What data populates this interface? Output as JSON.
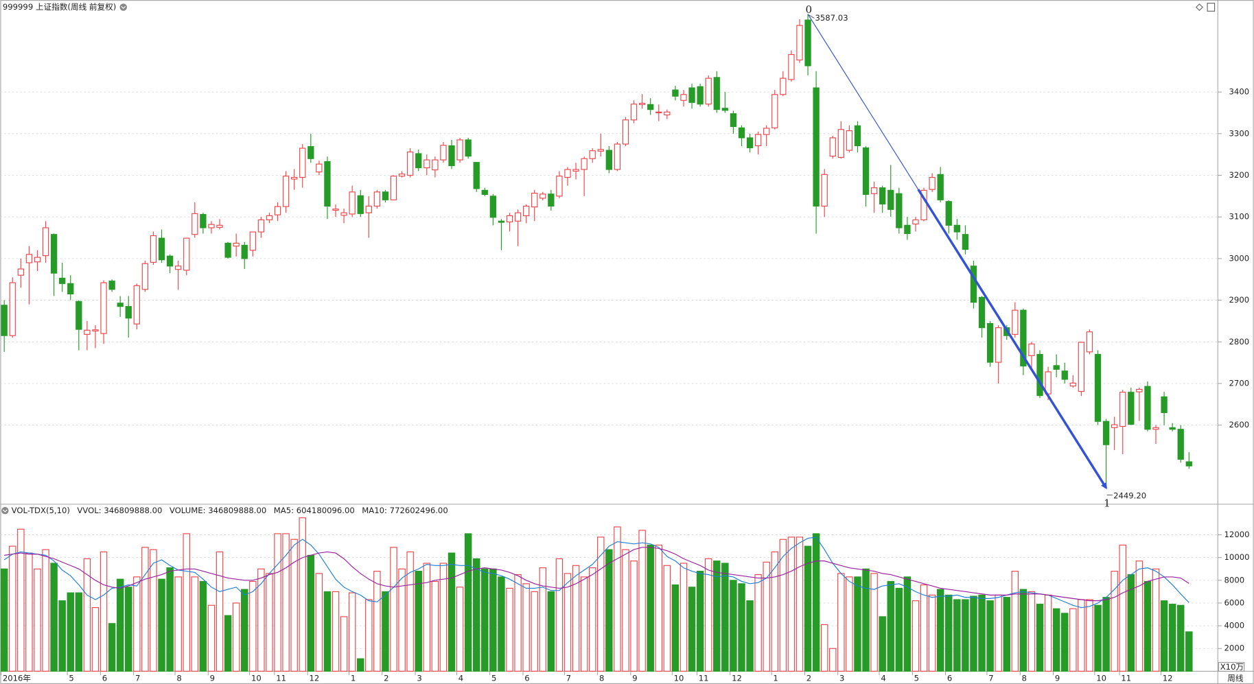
{
  "header": {
    "title": "999999 上证指数(周线 前复权)"
  },
  "chart_data": [
    {
      "type": "candlestick",
      "categories": [
        "2016年",
        null,
        null,
        null,
        null,
        null,
        null,
        null,
        "5",
        null,
        null,
        null,
        "6",
        null,
        null,
        null,
        "7",
        null,
        null,
        null,
        null,
        "8",
        null,
        null,
        null,
        "9",
        null,
        null,
        null,
        null,
        "10",
        null,
        null,
        "11",
        null,
        null,
        null,
        "12",
        null,
        null,
        null,
        null,
        "1",
        null,
        null,
        null,
        "2",
        null,
        null,
        null,
        "3",
        null,
        null,
        null,
        null,
        "4",
        null,
        null,
        null,
        "5",
        null,
        null,
        null,
        "6",
        null,
        null,
        null,
        null,
        "7",
        null,
        null,
        null,
        "8",
        null,
        null,
        null,
        "9",
        null,
        null,
        null,
        null,
        "10",
        null,
        null,
        "11",
        null,
        null,
        null,
        "12",
        null,
        null,
        null,
        null,
        "1",
        null,
        null,
        null,
        "2",
        null,
        null,
        null,
        "3",
        null,
        null,
        null,
        null,
        "4",
        null,
        null,
        null,
        "5",
        null,
        null,
        null,
        "6",
        null,
        null,
        null,
        null,
        "7",
        null,
        null,
        null,
        "8",
        null,
        null,
        null,
        "9",
        null,
        null,
        null,
        null,
        "10",
        null,
        null,
        "11",
        null,
        null,
        null,
        null,
        "12",
        null,
        null,
        null
      ],
      "open": [
        2888,
        2815,
        2960,
        2990,
        2992,
        3007,
        3058,
        2953,
        2940,
        2897,
        2818,
        2826,
        2820,
        2946,
        2893,
        2885,
        2843,
        2926,
        2991,
        3049,
        3006,
        2974,
        2972,
        3058,
        3106,
        3074,
        3075,
        3037,
        3030,
        3032,
        3020,
        3064,
        3093,
        3105,
        3125,
        3191,
        3195,
        3269,
        3208,
        3233,
        3116,
        3104,
        3107,
        3151,
        3110,
        3126,
        3160,
        3141,
        3198,
        3200,
        3252,
        3218,
        3213,
        3237,
        3271,
        3237,
        3285,
        3231,
        3164,
        3150,
        3090,
        3088,
        3090,
        3103,
        3124,
        3145,
        3155,
        3150,
        3195,
        3210,
        3214,
        3240,
        3258,
        3260,
        3214,
        3275,
        3333,
        3370,
        3370,
        3350,
        3345,
        3405,
        3380,
        3410,
        3413,
        3371,
        3435,
        3361,
        3348,
        3314,
        3290,
        3271,
        3298,
        3314,
        3394,
        3430,
        3477,
        3573,
        3410,
        3126,
        3246,
        3243,
        3260,
        3319,
        3266,
        3156,
        3170,
        3164,
        3156,
        3080,
        3083,
        3093,
        3166,
        3202,
        3137,
        3080,
        3058,
        2982,
        2907,
        2844,
        2751,
        2834,
        2818,
        2876,
        2767,
        2770,
        2675,
        2743,
        2730,
        2694,
        2681,
        2776,
        2770,
        2609,
        2594,
        2597,
        2679,
        2680,
        2693,
        2590,
        2668,
        2594,
        2590,
        2512
      ],
      "high": [
        2900,
        2955,
        3000,
        3030,
        3020,
        3090,
        3060,
        2990,
        2960,
        2900,
        2850,
        2840,
        2948,
        2950,
        2910,
        2910,
        2940,
        2995,
        3065,
        3070,
        3010,
        2995,
        3050,
        3135,
        3110,
        3090,
        3095,
        3040,
        3060,
        3040,
        3065,
        3100,
        3110,
        3135,
        3210,
        3215,
        3275,
        3300,
        3235,
        3245,
        3130,
        3120,
        3175,
        3165,
        3150,
        3165,
        3165,
        3200,
        3210,
        3265,
        3262,
        3250,
        3245,
        3280,
        3285,
        3290,
        3290,
        3232,
        3170,
        3155,
        3095,
        3110,
        3118,
        3130,
        3165,
        3160,
        3165,
        3210,
        3220,
        3230,
        3245,
        3265,
        3300,
        3270,
        3280,
        3340,
        3380,
        3395,
        3385,
        3370,
        3358,
        3415,
        3405,
        3420,
        3420,
        3440,
        3450,
        3400,
        3355,
        3320,
        3300,
        3305,
        3320,
        3405,
        3450,
        3500,
        3575,
        3587.03,
        3450,
        3215,
        3295,
        3330,
        3320,
        3330,
        3270,
        3185,
        3175,
        3225,
        3170,
        3100,
        3100,
        3170,
        3205,
        3220,
        3140,
        3095,
        3080,
        2995,
        2910,
        2850,
        2840,
        2840,
        2895,
        2880,
        2800,
        2780,
        2740,
        2770,
        2750,
        2720,
        2800,
        2830,
        2780,
        2615,
        2620,
        2685,
        2690,
        2690,
        2705,
        2600,
        2680,
        2605,
        2600,
        2535
      ],
      "low": [
        2776,
        2810,
        2930,
        2890,
        2970,
        2990,
        2910,
        2920,
        2900,
        2780,
        2780,
        2785,
        2795,
        2920,
        2860,
        2810,
        2830,
        2920,
        2985,
        2990,
        2965,
        2925,
        2960,
        3050,
        3060,
        3060,
        3070,
        3000,
        3005,
        2975,
        3005,
        3050,
        3085,
        3090,
        3110,
        3165,
        3170,
        3230,
        3200,
        3095,
        3100,
        3085,
        3100,
        3100,
        3050,
        3120,
        3135,
        3140,
        3195,
        3195,
        3210,
        3200,
        3195,
        3230,
        3215,
        3230,
        3240,
        3160,
        3150,
        3080,
        3020,
        3065,
        3030,
        3085,
        3090,
        3140,
        3115,
        3145,
        3175,
        3190,
        3150,
        3230,
        3245,
        3205,
        3210,
        3270,
        3325,
        3360,
        3345,
        3330,
        3335,
        3380,
        3365,
        3360,
        3365,
        3365,
        3350,
        3350,
        3300,
        3270,
        3255,
        3250,
        3270,
        3310,
        3390,
        3425,
        3470,
        3440,
        3060,
        3100,
        3240,
        3240,
        3255,
        3255,
        3125,
        3110,
        3110,
        3100,
        3060,
        3045,
        3065,
        3090,
        3160,
        3135,
        3060,
        3045,
        3010,
        2880,
        2810,
        2740,
        2700,
        2805,
        2810,
        2720,
        2735,
        2665,
        2660,
        2715,
        2700,
        2690,
        2670,
        2770,
        2600,
        2449.2,
        2540,
        2530,
        2600,
        2610,
        2585,
        2555,
        2600,
        2585,
        2510,
        2495
      ],
      "close": [
        2815,
        2942,
        2975,
        3010,
        3003,
        3074,
        2965,
        2940,
        2915,
        2830,
        2828,
        2829,
        2942,
        2926,
        2885,
        2857,
        2935,
        2988,
        3055,
        2997,
        2982,
        2982,
        3049,
        3108,
        3074,
        3082,
        3080,
        3003,
        3037,
        3000,
        3064,
        3093,
        3103,
        3125,
        3198,
        3195,
        3265,
        3240,
        3227,
        3126,
        3119,
        3110,
        3160,
        3108,
        3126,
        3160,
        3141,
        3198,
        3203,
        3256,
        3218,
        3237,
        3237,
        3272,
        3223,
        3285,
        3246,
        3168,
        3154,
        3099,
        3087,
        3103,
        3110,
        3126,
        3157,
        3155,
        3126,
        3198,
        3214,
        3214,
        3240,
        3259,
        3262,
        3214,
        3275,
        3333,
        3371,
        3373,
        3358,
        3352,
        3352,
        3390,
        3394,
        3375,
        3371,
        3433,
        3358,
        3356,
        3317,
        3290,
        3266,
        3298,
        3313,
        3394,
        3433,
        3490,
        3560,
        3463,
        3126,
        3202,
        3290,
        3310,
        3307,
        3271,
        3154,
        3170,
        3131,
        3118,
        3074,
        3060,
        3093,
        3164,
        3195,
        3141,
        3080,
        3064,
        3022,
        2895,
        2834,
        2751,
        2834,
        2815,
        2876,
        2742,
        2795,
        2671,
        2728,
        2734,
        2710,
        2701,
        2799,
        2824,
        2609,
        2553,
        2601,
        2679,
        2602,
        2686,
        2590,
        2594,
        2630,
        2590,
        2518,
        2502
      ],
      "up_color": "#f0464b",
      "down_color": "#279b27",
      "ylim": [
        2412,
        3621
      ],
      "yticks": [
        2600,
        2700,
        2800,
        2900,
        3000,
        3100,
        3200,
        3300,
        3400
      ],
      "grid": true,
      "annotations": [
        {
          "index": 97,
          "at": "high",
          "marker": "0",
          "label": "3587.03"
        },
        {
          "index": 133,
          "at": "low",
          "marker": "1",
          "label": "2449.20"
        }
      ],
      "trend_color": "#3352d6",
      "period_label": "周线"
    },
    {
      "type": "bar",
      "indicator": "VOL-TDX(5,10)",
      "indicator_value": "VVOL: 346809888.00",
      "unit_label": "X10万",
      "ylim": [
        0,
        13500
      ],
      "yticks": [
        2000,
        4000,
        6000,
        8000,
        10000,
        12000
      ],
      "grid": true,
      "series": [
        {
          "name": "VOLUME: 346809888.00",
          "color": "#1f7fd8",
          "values": [
            9000,
            11000,
            12500,
            10400,
            9000,
            10700,
            9500,
            6200,
            6900,
            6900,
            9900,
            5600,
            10500,
            4200,
            8100,
            7400,
            8300,
            10900,
            10700,
            8100,
            9100,
            8300,
            12100,
            8300,
            7900,
            5800,
            10500,
            4900,
            6000,
            7200,
            7900,
            9000,
            8600,
            12100,
            12100,
            11600,
            13500,
            10200,
            8600,
            7000,
            7000,
            4800,
            6900,
            1100,
            6300,
            8800,
            7000,
            10900,
            9000,
            10500,
            8800,
            9500,
            7900,
            9500,
            10400,
            7400,
            12100,
            9900,
            9000,
            9000,
            8300,
            7300,
            8500,
            7700,
            7000,
            9100,
            7000,
            9900,
            8600,
            9300,
            8300,
            9100,
            11800,
            10700,
            12700,
            10700,
            9700,
            12400,
            11100,
            11100,
            9300,
            7600,
            9500,
            7400,
            8800,
            9900,
            9700,
            9500,
            8000,
            7700,
            6200,
            8500,
            9600,
            10500,
            11600,
            11800,
            11800,
            11000,
            12100,
            4100,
            2000,
            8600,
            8300,
            8300,
            9000,
            8600,
            4800,
            7900,
            7300,
            8300,
            6200,
            7600,
            6700,
            7200,
            6700,
            6300,
            6300,
            6600,
            6700,
            6200,
            6700,
            6500,
            8800,
            7200,
            7000,
            5900,
            6700,
            5500,
            5100,
            5500,
            6300,
            6300,
            5800,
            6500,
            8800,
            11100,
            8500,
            9700,
            7900,
            9000,
            6200,
            5900,
            5800,
            3468
          ]
        },
        {
          "name": "MA5: 604180096.00",
          "color": "#1f7fd8",
          "values": [
            9800,
            10300,
            10500,
            10400,
            10300,
            10200,
            9700,
            8900,
            8400,
            7600,
            6700,
            6300,
            6700,
            7300,
            7400,
            7600,
            7500,
            8500,
            9500,
            9800,
            9300,
            8900,
            8800,
            8700,
            8100,
            7400,
            7000,
            7200,
            7400,
            6700,
            7000,
            7700,
            8600,
            9400,
            10200,
            11100,
            11600,
            11100,
            10300,
            9200,
            8100,
            7400,
            7000,
            6700,
            6200,
            6100,
            6700,
            7400,
            8200,
            8700,
            9000,
            9400,
            9300,
            9300,
            9400,
            9300,
            9300,
            9000,
            8700,
            8600,
            8400,
            8100,
            7700,
            7300,
            7300,
            7400,
            7100,
            7100,
            7800,
            8400,
            8900,
            9400,
            10200,
            11000,
            11400,
            11300,
            11200,
            11300,
            11200,
            10900,
            10100,
            9700,
            9100,
            8800,
            8600,
            8500,
            8300,
            8400,
            8300,
            7900,
            7700,
            7800,
            8200,
            9100,
            10100,
            10800,
            11300,
            11700,
            11800,
            10700,
            9500,
            8600,
            7900,
            7500,
            7300,
            7200,
            7500,
            7600,
            7700,
            7400,
            7000,
            6700,
            6500,
            6600,
            6600,
            6700,
            6500,
            6500,
            6400,
            6400,
            6500,
            6700,
            6900,
            7000,
            6900,
            6800,
            6700,
            6400,
            6100,
            5800,
            5600,
            5700,
            6000,
            6500,
            7200,
            8000,
            8500,
            9000,
            9100,
            8800,
            8300,
            7600,
            6800,
            6042
          ]
        },
        {
          "name": "MA10: 772602496.00",
          "color": "#9b1fa0",
          "values": [
            10200,
            10300,
            10400,
            10300,
            10300,
            10100,
            9900,
            9600,
            9300,
            9000,
            8500,
            8000,
            7600,
            7400,
            7300,
            7500,
            7800,
            8100,
            8300,
            8500,
            8800,
            8900,
            9000,
            9000,
            8800,
            8600,
            8400,
            8200,
            8100,
            8000,
            8000,
            8200,
            8500,
            8700,
            9100,
            9600,
            10000,
            10200,
            10400,
            10500,
            10400,
            9900,
            9200,
            8600,
            8100,
            7700,
            7500,
            7400,
            7500,
            7600,
            7700,
            7800,
            8000,
            8100,
            8200,
            8500,
            8800,
            9000,
            9100,
            9000,
            8900,
            8700,
            8400,
            8000,
            7700,
            7500,
            7400,
            7300,
            7400,
            7700,
            8100,
            8500,
            9000,
            9500,
            9900,
            10300,
            10700,
            10900,
            10900,
            10800,
            10600,
            10300,
            9900,
            9600,
            9300,
            8900,
            8700,
            8600,
            8500,
            8400,
            8300,
            8200,
            8200,
            8300,
            8500,
            8800,
            9200,
            9500,
            9700,
            9700,
            9500,
            9300,
            9100,
            9000,
            8900,
            8800,
            8600,
            8500,
            8300,
            8100,
            7900,
            7700,
            7500,
            7300,
            7200,
            7100,
            7000,
            6900,
            6800,
            6700,
            6700,
            6700,
            6800,
            6800,
            6800,
            6800,
            6700,
            6600,
            6500,
            6400,
            6300,
            6200,
            6200,
            6300,
            6500,
            6900,
            7200,
            7500,
            7900,
            8100,
            8300,
            8300,
            8200,
            7726
          ]
        }
      ]
    }
  ]
}
